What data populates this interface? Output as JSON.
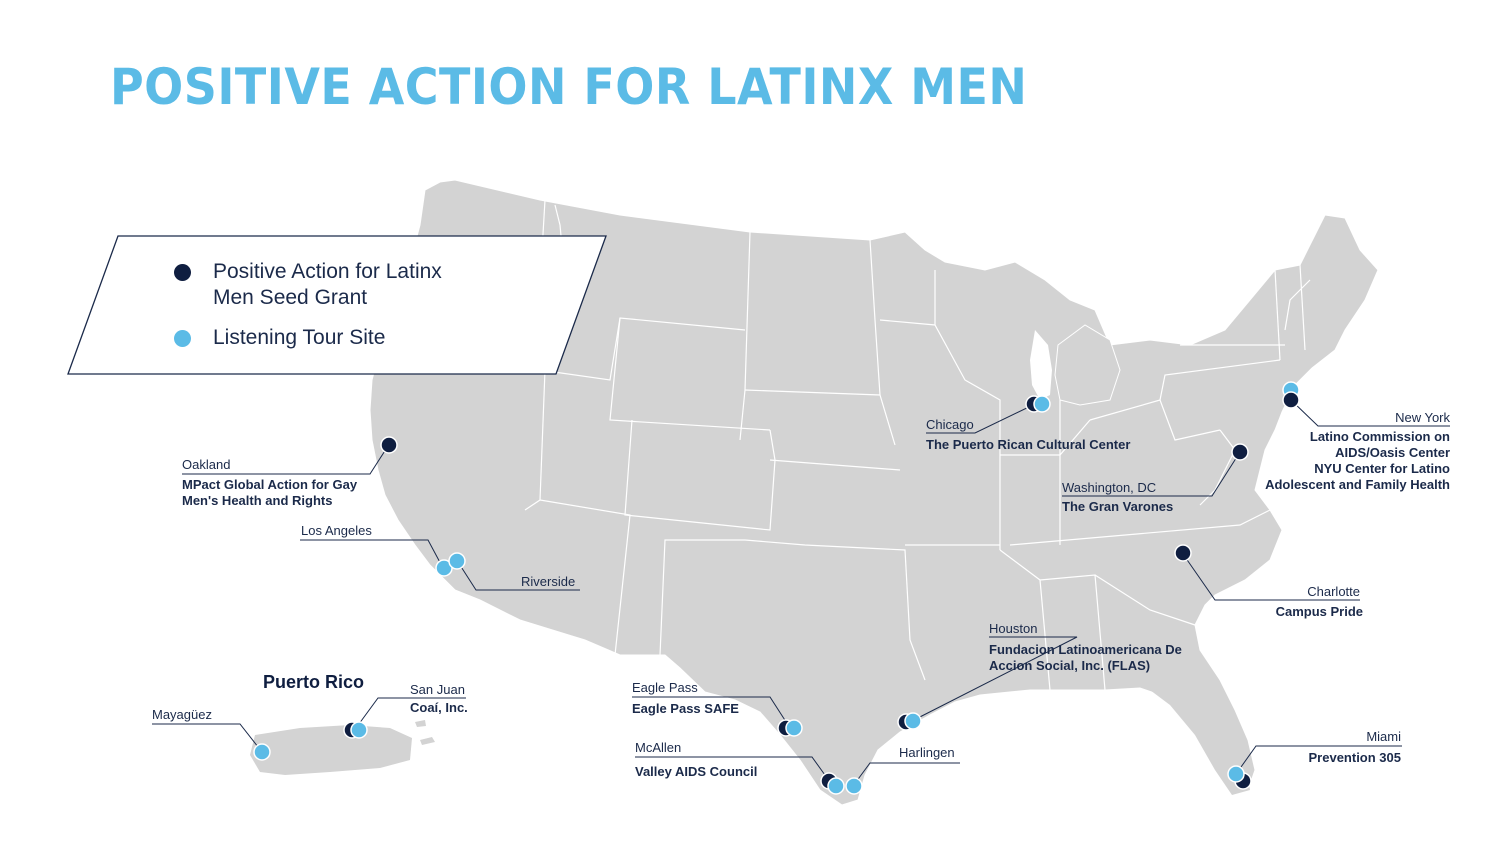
{
  "title": "POSITIVE ACTION FOR LATINX MEN",
  "colors": {
    "title": "#5bbbe6",
    "seed_grant": "#0f1e40",
    "listening_tour": "#5bbbe6",
    "land": "#d3d3d3",
    "border": "#ffffff"
  },
  "legend": {
    "seed_grant_line1": "Positive Action for Latinx",
    "seed_grant_line2": "Men Seed Grant",
    "listening_tour": "Listening Tour Site"
  },
  "puerto_rico_title": "Puerto Rico",
  "sites": {
    "oakland": {
      "city": "Oakland",
      "org1": "MPact Global Action for Gay",
      "org2": "Men's Health and Rights"
    },
    "los_angeles": {
      "city": "Los Angeles"
    },
    "riverside": {
      "city": "Riverside"
    },
    "chicago": {
      "city": "Chicago",
      "org1": "The Puerto Rican Cultural Center"
    },
    "new_york": {
      "city": "New York",
      "org1": "Latino Commission on",
      "org2": "AIDS/Oasis Center",
      "org3": "NYU Center for Latino",
      "org4": "Adolescent and Family Health"
    },
    "washington": {
      "city": "Washington, DC",
      "org1": "The Gran Varones"
    },
    "charlotte": {
      "city": "Charlotte",
      "org1": "Campus Pride"
    },
    "houston": {
      "city": "Houston",
      "org1": "Fundacion Latinoamericana De",
      "org2": "Accion Social, Inc. (FLAS)"
    },
    "eagle_pass": {
      "city": "Eagle Pass",
      "org1": "Eagle Pass SAFE"
    },
    "mcallen": {
      "city": "McAllen",
      "org1": "Valley AIDS Council"
    },
    "harlingen": {
      "city": "Harlingen"
    },
    "miami": {
      "city": "Miami",
      "org1": "Prevention 305"
    },
    "san_juan": {
      "city": "San Juan",
      "org1": "Coaí, Inc."
    },
    "mayaguez": {
      "city": "Mayagüez"
    }
  }
}
